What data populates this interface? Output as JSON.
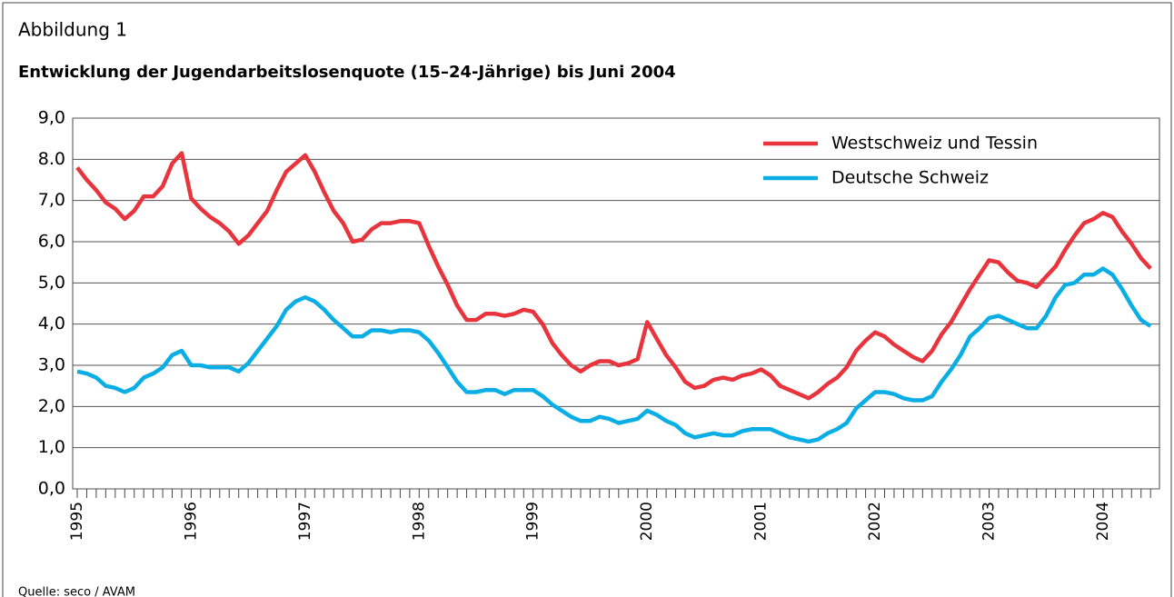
{
  "chart_data": {
    "type": "line",
    "figure_label": "Abbildung 1",
    "title": "Entwicklung der Jugendarbeitslosenquote (15–24-Jährige) bis Juni 2004",
    "source": "Quelle: seco / AVAM",
    "categories": [
      "1995",
      null,
      null,
      null,
      null,
      null,
      null,
      null,
      null,
      null,
      null,
      null,
      "1996",
      null,
      null,
      null,
      null,
      null,
      null,
      null,
      null,
      null,
      null,
      null,
      "1997",
      null,
      null,
      null,
      null,
      null,
      null,
      null,
      null,
      null,
      null,
      null,
      "1998",
      null,
      null,
      null,
      null,
      null,
      null,
      null,
      null,
      null,
      null,
      null,
      "1999",
      null,
      null,
      null,
      null,
      null,
      null,
      null,
      null,
      null,
      null,
      null,
      "2000",
      null,
      null,
      null,
      null,
      null,
      null,
      null,
      null,
      null,
      null,
      null,
      "2001",
      null,
      null,
      null,
      null,
      null,
      null,
      null,
      null,
      null,
      null,
      null,
      "2002",
      null,
      null,
      null,
      null,
      null,
      null,
      null,
      null,
      null,
      null,
      null,
      "2003",
      null,
      null,
      null,
      null,
      null,
      null,
      null,
      null,
      null,
      null,
      null,
      "2004",
      null,
      null,
      null,
      null,
      null
    ],
    "series": [
      {
        "name": "Westschweiz und Tessin",
        "color": "#e8343c",
        "values": [
          7.8,
          7.5,
          7.25,
          6.95,
          6.8,
          6.55,
          6.75,
          7.1,
          7.1,
          7.35,
          7.9,
          8.15,
          7.05,
          6.8,
          6.6,
          6.45,
          6.25,
          5.95,
          6.15,
          6.45,
          6.75,
          7.25,
          7.7,
          7.9,
          8.1,
          7.7,
          7.2,
          6.75,
          6.45,
          6.0,
          6.05,
          6.3,
          6.45,
          6.45,
          6.5,
          6.5,
          6.45,
          5.9,
          5.4,
          4.95,
          4.45,
          4.1,
          4.1,
          4.25,
          4.25,
          4.2,
          4.25,
          4.35,
          4.3,
          4.0,
          3.55,
          3.25,
          3.0,
          2.85,
          3.0,
          3.1,
          3.1,
          3.0,
          3.05,
          3.15,
          4.05,
          3.65,
          3.25,
          2.95,
          2.6,
          2.45,
          2.5,
          2.65,
          2.7,
          2.65,
          2.75,
          2.8,
          2.9,
          2.75,
          2.5,
          2.4,
          2.3,
          2.2,
          2.35,
          2.55,
          2.7,
          2.95,
          3.35,
          3.6,
          3.8,
          3.7,
          3.5,
          3.35,
          3.2,
          3.1,
          3.35,
          3.75,
          4.05,
          4.45,
          4.85,
          5.2,
          5.55,
          5.5,
          5.25,
          5.05,
          5.0,
          4.9,
          5.15,
          5.4,
          5.8,
          6.15,
          6.45,
          6.55,
          6.7,
          6.6,
          6.25,
          5.95,
          5.6,
          5.35
        ]
      },
      {
        "name": "Deutsche Schweiz",
        "color": "#0aaee4",
        "values": [
          2.85,
          2.8,
          2.7,
          2.5,
          2.45,
          2.35,
          2.45,
          2.7,
          2.8,
          2.95,
          3.25,
          3.35,
          3.0,
          3.0,
          2.95,
          2.95,
          2.95,
          2.85,
          3.05,
          3.35,
          3.65,
          3.95,
          4.35,
          4.55,
          4.65,
          4.55,
          4.35,
          4.1,
          3.9,
          3.7,
          3.7,
          3.85,
          3.85,
          3.8,
          3.85,
          3.85,
          3.8,
          3.6,
          3.3,
          2.95,
          2.6,
          2.35,
          2.35,
          2.4,
          2.4,
          2.3,
          2.4,
          2.4,
          2.4,
          2.25,
          2.05,
          1.9,
          1.75,
          1.65,
          1.65,
          1.75,
          1.7,
          1.6,
          1.65,
          1.7,
          1.9,
          1.8,
          1.65,
          1.55,
          1.35,
          1.25,
          1.3,
          1.35,
          1.3,
          1.3,
          1.4,
          1.45,
          1.45,
          1.45,
          1.35,
          1.25,
          1.2,
          1.15,
          1.2,
          1.35,
          1.45,
          1.6,
          1.95,
          2.15,
          2.35,
          2.35,
          2.3,
          2.2,
          2.15,
          2.15,
          2.25,
          2.6,
          2.9,
          3.25,
          3.7,
          3.9,
          4.15,
          4.2,
          4.1,
          4.0,
          3.9,
          3.9,
          4.2,
          4.65,
          4.95,
          5.0,
          5.2,
          5.2,
          5.35,
          5.2,
          4.85,
          4.45,
          4.1,
          3.95
        ]
      }
    ],
    "ylim": [
      0,
      9
    ],
    "yticks": [
      {
        "value": 0,
        "label": "0,0"
      },
      {
        "value": 1,
        "label": "1,0"
      },
      {
        "value": 2,
        "label": "2,0"
      },
      {
        "value": 3,
        "label": "3,0"
      },
      {
        "value": 4,
        "label": "4,0"
      },
      {
        "value": 5,
        "label": "5,0"
      },
      {
        "value": 6,
        "label": "6,0"
      },
      {
        "value": 7,
        "label": "7,0"
      },
      {
        "value": 8,
        "label": "8.0"
      },
      {
        "value": 9,
        "label": "9,0"
      }
    ],
    "grid": true,
    "legend": "top-right"
  }
}
